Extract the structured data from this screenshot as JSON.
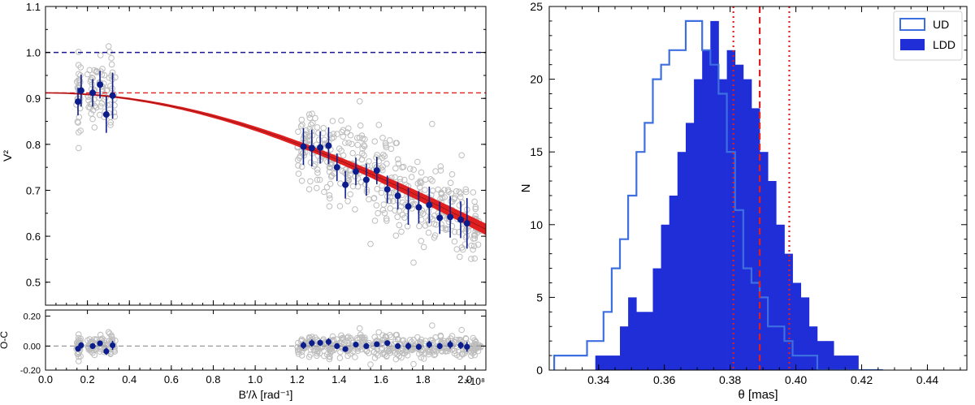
{
  "chart_data": [
    {
      "type": "scatter",
      "panel": "visibility",
      "title": "",
      "xlabel": "B′/λ [rad⁻¹]",
      "ylabel": "V²",
      "xlim": [
        0.0,
        2.1
      ],
      "ylim": [
        0.45,
        1.1
      ],
      "x_multiplier_label": "×10⁸",
      "xticks": [
        "0.0",
        "0.2",
        "0.4",
        "0.6",
        "0.8",
        "1.0",
        "1.2",
        "1.4",
        "1.6",
        "1.8",
        "2.0"
      ],
      "yticks": [
        "0.5",
        "0.6",
        "0.7",
        "0.8",
        "0.9",
        "1.0",
        "1.1"
      ],
      "reference_lines": [
        {
          "y": 1.0,
          "color": "#1a1a8c",
          "style": "dashed"
        },
        {
          "y": 0.912,
          "color": "#e02020",
          "style": "dashed"
        }
      ],
      "model_curve": {
        "zero_baseline_v2": 0.912,
        "v2_at_2_1e8": 0.615,
        "color": "#e02020"
      },
      "binned_points": {
        "color": "#0b1d8c",
        "x": [
          0.155,
          0.17,
          0.225,
          0.26,
          0.29,
          0.32,
          1.23,
          1.27,
          1.31,
          1.35,
          1.39,
          1.43,
          1.48,
          1.53,
          1.58,
          1.63,
          1.68,
          1.73,
          1.78,
          1.83,
          1.88,
          1.93,
          1.98,
          2.01
        ],
        "y": [
          0.893,
          0.917,
          0.912,
          0.93,
          0.865,
          0.906,
          0.795,
          0.792,
          0.793,
          0.797,
          0.75,
          0.712,
          0.741,
          0.723,
          0.743,
          0.702,
          0.688,
          0.665,
          0.663,
          0.668,
          0.64,
          0.642,
          0.636,
          0.628
        ],
        "yerr": [
          0.03,
          0.035,
          0.03,
          0.03,
          0.04,
          0.05,
          0.04,
          0.04,
          0.035,
          0.04,
          0.03,
          0.03,
          0.03,
          0.035,
          0.03,
          0.03,
          0.03,
          0.04,
          0.035,
          0.04,
          0.035,
          0.045,
          0.04,
          0.055
        ]
      },
      "raw_points": {
        "color": "#b8b8b8",
        "description": "individual V² measurements shown as open grey circles"
      }
    },
    {
      "type": "scatter",
      "panel": "residuals",
      "ylabel": "O-C",
      "ylim": [
        -0.16,
        0.24
      ],
      "yticks": [
        "-0.20",
        "0.00",
        "0.20"
      ],
      "xlim": [
        0.0,
        2.1
      ],
      "reference_line": {
        "y": 0.0,
        "color": "#999999",
        "style": "dashed"
      },
      "binned_points": {
        "x": [
          0.155,
          0.17,
          0.225,
          0.26,
          0.29,
          0.32,
          1.23,
          1.27,
          1.31,
          1.35,
          1.39,
          1.43,
          1.48,
          1.53,
          1.58,
          1.63,
          1.68,
          1.73,
          1.78,
          1.83,
          1.88,
          1.93,
          1.98,
          2.01
        ],
        "y": [
          -0.018,
          0.005,
          0.0,
          0.018,
          -0.035,
          0.005,
          0.005,
          0.02,
          0.022,
          0.028,
          0.0,
          -0.02,
          0.01,
          0.0,
          0.012,
          0.02,
          0.0,
          0.0,
          -0.005,
          0.01,
          0.0,
          0.01,
          0.005,
          -0.005
        ],
        "yerr": [
          0.03,
          0.035,
          0.03,
          0.03,
          0.04,
          0.05,
          0.04,
          0.04,
          0.035,
          0.04,
          0.03,
          0.03,
          0.03,
          0.035,
          0.03,
          0.03,
          0.03,
          0.04,
          0.035,
          0.04,
          0.035,
          0.045,
          0.04,
          0.055
        ]
      }
    },
    {
      "type": "histogram",
      "panel": "diameter-distribution",
      "xlabel": "θ [mas]",
      "ylabel": "N",
      "xlim": [
        0.325,
        0.452
      ],
      "ylim": [
        0,
        25
      ],
      "xticks": [
        "0.34",
        "0.36",
        "0.38",
        "0.40",
        "0.42",
        "0.44"
      ],
      "yticks": [
        "0",
        "5",
        "10",
        "15",
        "20",
        "25"
      ],
      "legend": {
        "location": "top-right",
        "entries": [
          "UD",
          "LDD"
        ]
      },
      "bin_start": 0.3265,
      "bin_width": 0.0025,
      "series": [
        {
          "name": "UD",
          "style": "step",
          "color": "#3e6fe0",
          "values": [
            1,
            1,
            1,
            1,
            2,
            2,
            4,
            7,
            9,
            12,
            15,
            17,
            20,
            21,
            22,
            22,
            24,
            24,
            22,
            21,
            19,
            15,
            11,
            7,
            6,
            5,
            3,
            3,
            2,
            1,
            1,
            1,
            0,
            0,
            0,
            0,
            0,
            0,
            0,
            0
          ]
        },
        {
          "name": "LDD",
          "style": "filled",
          "color": "#1f2ed6",
          "values": [
            0,
            0,
            0,
            0,
            0,
            1,
            1,
            1,
            3,
            5,
            4,
            4,
            7,
            10,
            12,
            15,
            17,
            20,
            22,
            24,
            20,
            22,
            21,
            20,
            18,
            15,
            13,
            10,
            8,
            6,
            5,
            3,
            2,
            2,
            1,
            1,
            1,
            0,
            0,
            0
          ]
        }
      ],
      "reference_lines": [
        {
          "x": 0.389,
          "color": "#e02020",
          "style": "dashed",
          "meaning": "median"
        },
        {
          "x": 0.381,
          "color": "#e02020",
          "style": "dotted",
          "meaning": "lower bound"
        },
        {
          "x": 0.398,
          "color": "#e02020",
          "style": "dotted",
          "meaning": "upper bound"
        }
      ]
    }
  ]
}
